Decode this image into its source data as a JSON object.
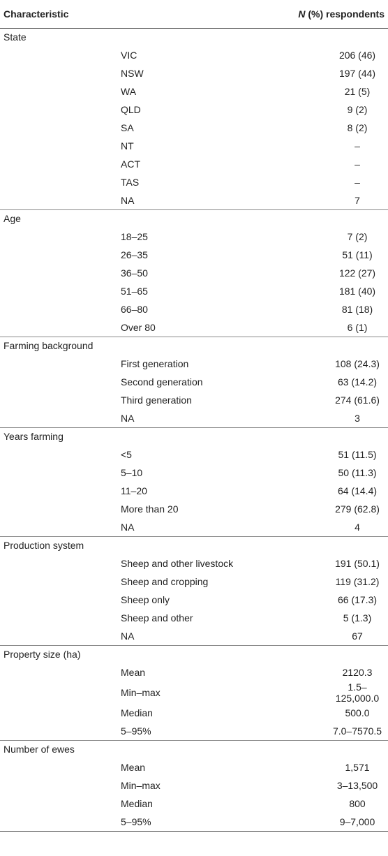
{
  "table": {
    "header": {
      "characteristic": "Characteristic",
      "n_italic": "N",
      "n_rest": " (%) respondents"
    },
    "groups": [
      {
        "title": "State",
        "rows": [
          {
            "label": "VIC",
            "value": "206 (46)"
          },
          {
            "label": "NSW",
            "value": "197 (44)"
          },
          {
            "label": "WA",
            "value": "21 (5)"
          },
          {
            "label": "QLD",
            "value": "9 (2)"
          },
          {
            "label": "SA",
            "value": "8 (2)"
          },
          {
            "label": "NT",
            "value": "–"
          },
          {
            "label": "ACT",
            "value": "–"
          },
          {
            "label": "TAS",
            "value": "–"
          },
          {
            "label": "NA",
            "value": "7"
          }
        ]
      },
      {
        "title": "Age",
        "rows": [
          {
            "label": "18–25",
            "value": "7 (2)"
          },
          {
            "label": "26–35",
            "value": "51 (11)"
          },
          {
            "label": "36–50",
            "value": "122 (27)"
          },
          {
            "label": "51–65",
            "value": "181 (40)"
          },
          {
            "label": "66–80",
            "value": "81 (18)"
          },
          {
            "label": "Over 80",
            "value": "6 (1)"
          }
        ]
      },
      {
        "title": "Farming background",
        "rows": [
          {
            "label": "First generation",
            "value": "108 (24.3)"
          },
          {
            "label": "Second generation",
            "value": "63 (14.2)"
          },
          {
            "label": "Third generation",
            "value": "274 (61.6)"
          },
          {
            "label": "NA",
            "value": "3"
          }
        ]
      },
      {
        "title": "Years farming",
        "rows": [
          {
            "label": "<5",
            "value": "51 (11.5)"
          },
          {
            "label": "5–10",
            "value": "50 (11.3)"
          },
          {
            "label": "11–20",
            "value": "64 (14.4)"
          },
          {
            "label": "More than 20",
            "value": "279 (62.8)"
          },
          {
            "label": "NA",
            "value": "4"
          }
        ]
      },
      {
        "title": "Production system",
        "rows": [
          {
            "label": "Sheep and other livestock",
            "value": "191 (50.1)"
          },
          {
            "label": "Sheep and cropping",
            "value": "119 (31.2)"
          },
          {
            "label": "Sheep only",
            "value": "66 (17.3)"
          },
          {
            "label": "Sheep and other",
            "value": "5 (1.3)"
          },
          {
            "label": "NA",
            "value": "67"
          }
        ]
      },
      {
        "title": "Property size (ha)",
        "rows": [
          {
            "label": "Mean",
            "value": "2120.3"
          },
          {
            "label": "Min–max",
            "value": "1.5–125,000.0"
          },
          {
            "label": "Median",
            "value": "500.0"
          },
          {
            "label": "5–95%",
            "value": "7.0–7570.5"
          }
        ]
      },
      {
        "title": "Number of ewes",
        "rows": [
          {
            "label": "Mean",
            "value": "1,571"
          },
          {
            "label": "Min–max",
            "value": "3–13,500"
          },
          {
            "label": "Median",
            "value": "800"
          },
          {
            "label": "5–95%",
            "value": "9–7,000"
          }
        ]
      }
    ]
  }
}
